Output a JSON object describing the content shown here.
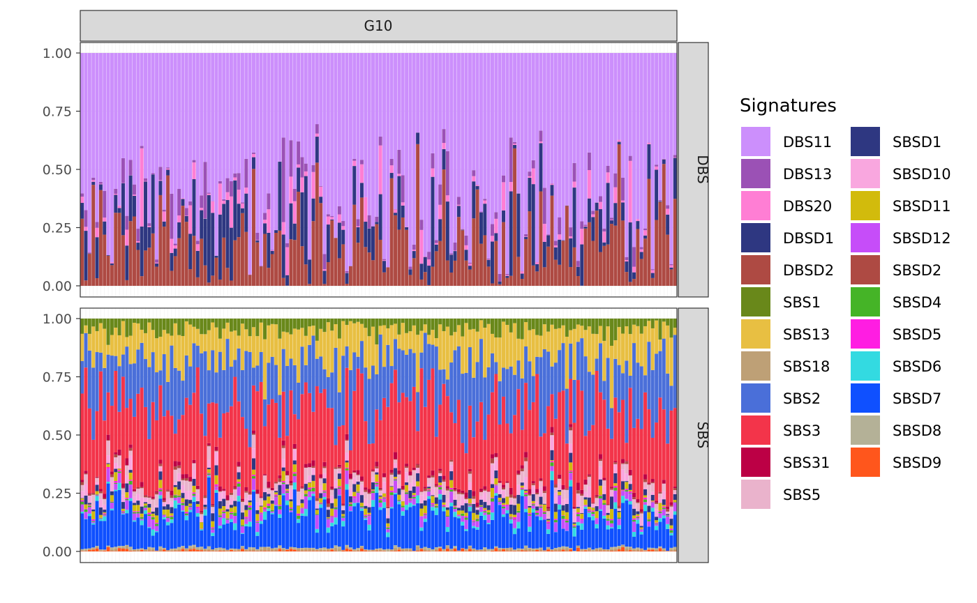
{
  "chart_data": {
    "type": "stacked-bar-faceted",
    "column_strip": "G10",
    "facets": [
      "DBS",
      "SBS"
    ],
    "ylim": [
      0,
      1
    ],
    "y_ticks": [
      "0.00",
      "0.25",
      "0.50",
      "0.75",
      "1.00"
    ],
    "n_samples": 160,
    "legend_title": "Signatures",
    "legend_position": "right",
    "signatures": [
      {
        "name": "DBS11",
        "color": "#CC8FFC"
      },
      {
        "name": "DBS13",
        "color": "#9B51B5"
      },
      {
        "name": "DBS20",
        "color": "#FF7ED4"
      },
      {
        "name": "DBSD1",
        "color": "#2E3781"
      },
      {
        "name": "DBSD2",
        "color": "#AE4A43"
      },
      {
        "name": "SBS1",
        "color": "#69881A"
      },
      {
        "name": "SBS13",
        "color": "#E8BF42"
      },
      {
        "name": "SBS18",
        "color": "#BEA076"
      },
      {
        "name": "SBS2",
        "color": "#4A6FD9"
      },
      {
        "name": "SBS3",
        "color": "#F3344A"
      },
      {
        "name": "SBS31",
        "color": "#BC0045"
      },
      {
        "name": "SBS5",
        "color": "#EAB3CC"
      },
      {
        "name": "SBSD1",
        "color": "#2E3781"
      },
      {
        "name": "SBSD10",
        "color": "#F9A7DF"
      },
      {
        "name": "SBSD11",
        "color": "#D2BB0C"
      },
      {
        "name": "SBSD12",
        "color": "#C64DF9"
      },
      {
        "name": "SBSD2",
        "color": "#AE4A43"
      },
      {
        "name": "SBSD4",
        "color": "#45B427"
      },
      {
        "name": "SBSD5",
        "color": "#FF1DE2"
      },
      {
        "name": "SBSD6",
        "color": "#33DAE1"
      },
      {
        "name": "SBSD7",
        "color": "#0F50FF"
      },
      {
        "name": "SBSD8",
        "color": "#B4B197"
      },
      {
        "name": "SBSD9",
        "color": "#FF561C"
      }
    ],
    "dbs_stack": [
      "DBSD2",
      "DBSD1",
      "DBS20",
      "DBS13",
      "DBS11"
    ],
    "sbs_stack": [
      "SBSD9",
      "SBS18",
      "SBSD8",
      "SBSD7",
      "SBSD6",
      "SBSD12",
      "SBSD4",
      "SBSD5",
      "SBSD11",
      "SBSD1",
      "SBSD10",
      "SBS5",
      "SBSD2",
      "SBS31",
      "SBS3",
      "SBS2",
      "SBS13",
      "SBS1"
    ],
    "grid": true
  }
}
